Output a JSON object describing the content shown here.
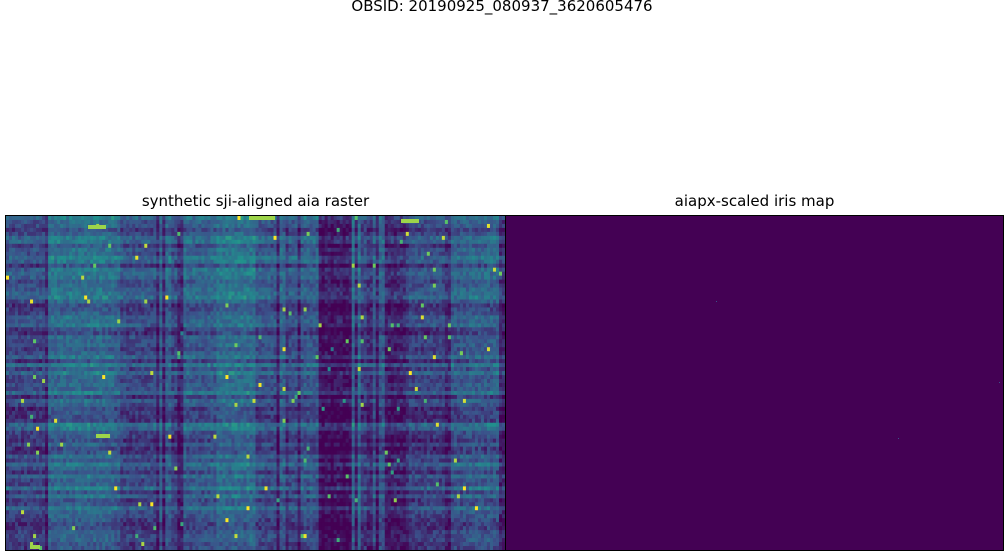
{
  "figure": {
    "suptitle": "OBSID: 20190925_080937_3620605476"
  },
  "chart_data": [
    {
      "type": "heatmap",
      "title": "synthetic sji-aligned aia raster",
      "colormap": "viridis",
      "xlabel": "",
      "ylabel": "",
      "axes_ticks": "none",
      "grid": false,
      "legend": "none",
      "colors": {
        "low": "#440154",
        "mid": "#3b528b",
        "teal": "#21908d",
        "green": "#5dc863",
        "high": "#fde725"
      }
    },
    {
      "type": "heatmap",
      "title": "aiapx-scaled iris map",
      "colormap": "viridis",
      "xlabel": "",
      "ylabel": "",
      "axes_ticks": "none",
      "grid": false,
      "legend": "none",
      "fill_color": "#440154",
      "speck_color": "#3b528b"
    }
  ]
}
